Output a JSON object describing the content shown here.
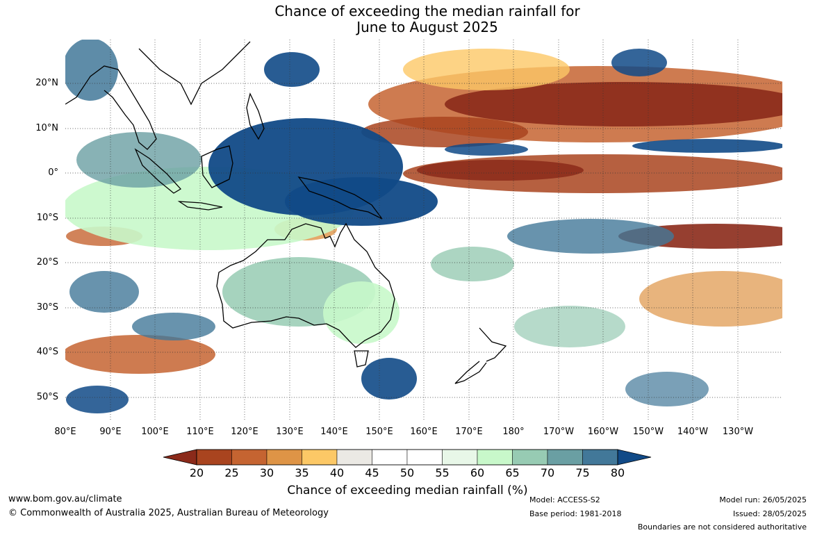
{
  "title": {
    "line1": "Chance of exceeding the median rainfall for",
    "line2": "June to August 2025"
  },
  "map": {
    "lat_labels": [
      "20°N",
      "10°N",
      "0°",
      "10°S",
      "20°S",
      "30°S",
      "40°S",
      "50°S"
    ],
    "lon_labels": [
      "80°E",
      "90°E",
      "100°E",
      "110°E",
      "120°E",
      "130°E",
      "140°E",
      "150°E",
      "160°E",
      "170°E",
      "180°",
      "170°W",
      "160°W",
      "150°W",
      "140°W",
      "130°W"
    ],
    "lat_range": [
      -55,
      30
    ],
    "lon_range": [
      80,
      240
    ]
  },
  "colorbar": {
    "ticks": [
      "20",
      "25",
      "30",
      "35",
      "40",
      "45",
      "50",
      "55",
      "60",
      "65",
      "70",
      "75",
      "80"
    ],
    "colors": [
      "#8b2a1a",
      "#a9441f",
      "#c56431",
      "#de9446",
      "#fcc866",
      "#ebe9e4",
      "#ffffff",
      "#ffffff",
      "#e8f7e8",
      "#c8f8ca",
      "#97cbb3",
      "#6a9fa3",
      "#427899",
      "#114a87"
    ],
    "label": "Chance of exceeding median rainfall (%)"
  },
  "footer": {
    "website": "www.bom.gov.au/climate",
    "copyright": "© Commonwealth of Australia 2025, Australian Bureau of Meteorology",
    "model": "Model: ACCESS-S2",
    "base_period": "Base period: 1981-2018",
    "model_run": "Model run: 26/05/2025",
    "issued": "Issued: 28/05/2025",
    "disclaimer": "Boundaries are not considered authoritative"
  }
}
